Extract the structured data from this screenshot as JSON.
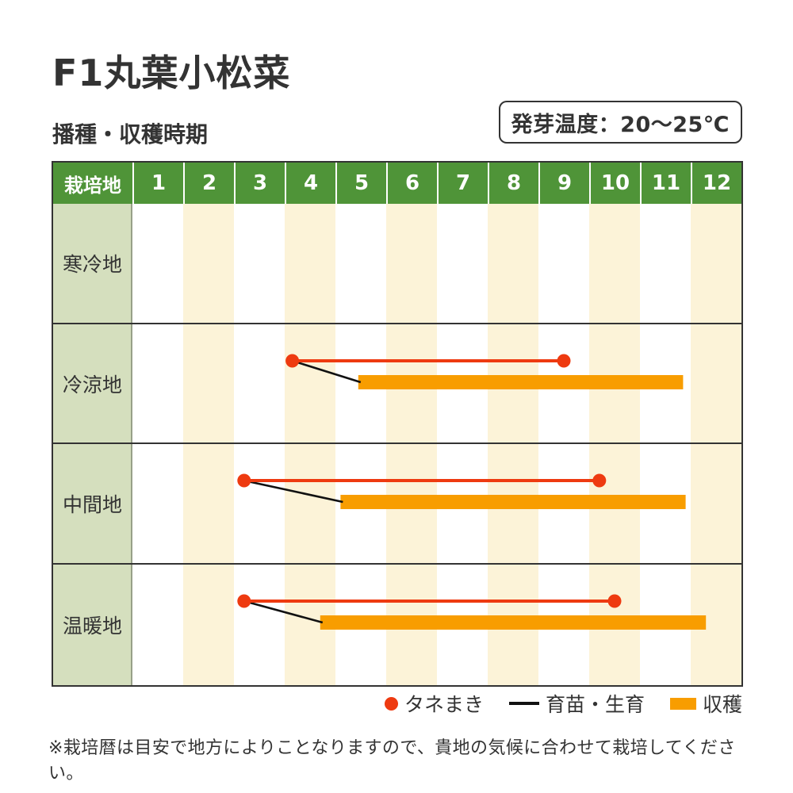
{
  "title": "F1丸葉小松菜",
  "section_title": "播種・収穫時期",
  "germination_label": "発芽温度：20〜25℃",
  "footnote": "※栽培暦は目安で地方によりことなりますので、貴地の気候に合わせて栽培してください。",
  "chart_data": {
    "type": "table",
    "subtype": "cultivation-calendar-gantt",
    "title": "播種・収穫時期",
    "corner_label": "栽培地",
    "months": [
      "1",
      "2",
      "3",
      "4",
      "5",
      "6",
      "7",
      "8",
      "9",
      "10",
      "11",
      "12"
    ],
    "x_range_months": [
      0,
      12
    ],
    "rows": [
      {
        "region": "寒冷地",
        "sowing_months": null,
        "harvest_months": null
      },
      {
        "region": "冷涼地",
        "sowing_months": [
          3.15,
          8.5
        ],
        "harvest_months": [
          4.45,
          10.85
        ]
      },
      {
        "region": "中間地",
        "sowing_months": [
          2.2,
          9.2
        ],
        "harvest_months": [
          4.1,
          10.9
        ]
      },
      {
        "region": "温暖地",
        "sowing_months": [
          2.2,
          9.5
        ],
        "harvest_months": [
          3.7,
          11.3
        ]
      }
    ],
    "legend": [
      {
        "symbol": "dot",
        "label": "タネまき"
      },
      {
        "symbol": "line",
        "label": "育苗・生育"
      },
      {
        "symbol": "bar",
        "label": "収穫"
      }
    ],
    "colors": {
      "header_green": "#4f9438",
      "region_cell_green": "#d5dfbe",
      "even_month_stripe": "#fcf3d8",
      "odd_month_stripe": "#ffffff",
      "harvest_orange": "#f89d00",
      "sowing_red": "#ee3a10",
      "growth_line_black": "#111111",
      "border_dark": "#333333",
      "text_dark": "#333333"
    }
  }
}
